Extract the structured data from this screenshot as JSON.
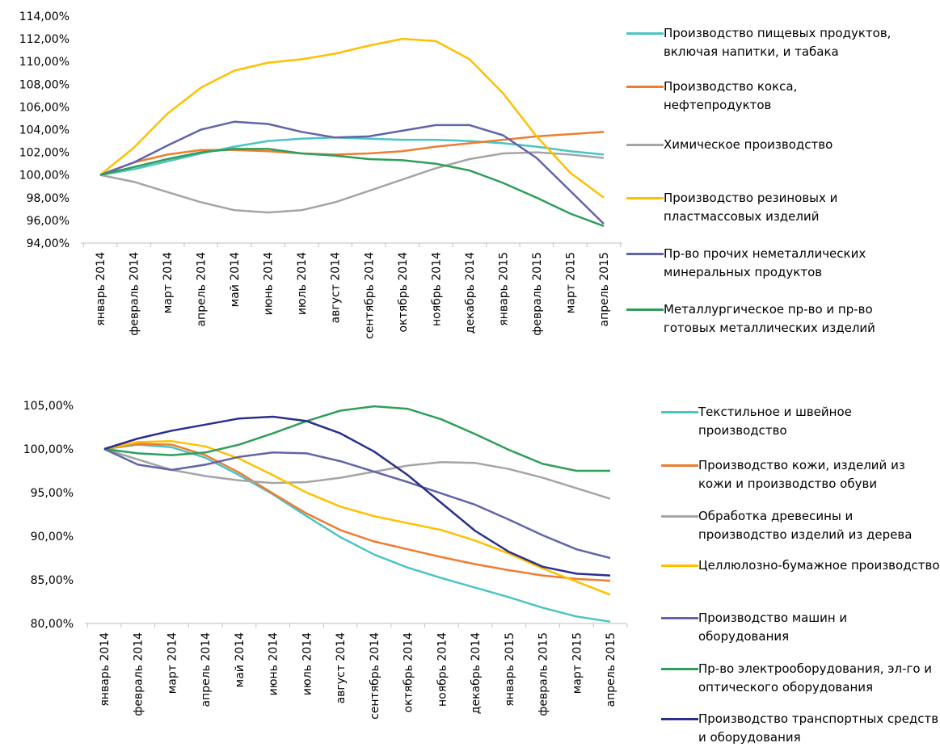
{
  "chart_data": [
    {
      "type": "line",
      "categories": [
        "январь 2014",
        "февраль 2014",
        "март 2014",
        "апрель 2014",
        "май 2014",
        "июнь 2014",
        "июль 2014",
        "август 2014",
        "сентябрь 2014",
        "октябрь 2014",
        "ноябрь 2014",
        "декабрь 2014",
        "январь 2015",
        "февраль 2015",
        "март 2015",
        "апрель 2015"
      ],
      "ylim": [
        94,
        114
      ],
      "yticks": [
        {
          "value": 94,
          "label": "94,00%"
        },
        {
          "value": 96,
          "label": "96,00%"
        },
        {
          "value": 98,
          "label": "98,00%"
        },
        {
          "value": 100,
          "label": "100,00%"
        },
        {
          "value": 102,
          "label": "102,00%"
        },
        {
          "value": 104,
          "label": "104,00%"
        },
        {
          "value": 106,
          "label": "106,00%"
        },
        {
          "value": 108,
          "label": "108,00%"
        },
        {
          "value": 110,
          "label": "110,00%"
        },
        {
          "value": 112,
          "label": "112,00%"
        },
        {
          "value": 114,
          "label": "114,00%"
        }
      ],
      "legend": "right",
      "series": [
        {
          "name": "Производство пищевых продуктов, включая напитки, и табака",
          "color": "#4bc4c4",
          "values": [
            100,
            100.5,
            101.2,
            101.9,
            102.5,
            103.0,
            103.2,
            103.3,
            103.2,
            103.1,
            103.1,
            103.0,
            102.8,
            102.5,
            102.1,
            101.8
          ]
        },
        {
          "name": "Производство кокса, нефтепродуктов",
          "color": "#ed7d31",
          "values": [
            100,
            101.1,
            101.8,
            102.2,
            102.2,
            102.1,
            101.9,
            101.8,
            101.9,
            102.1,
            102.5,
            102.8,
            103.1,
            103.4,
            103.6,
            103.8
          ]
        },
        {
          "name": "Химическое производство",
          "color": "#a5a5a5",
          "values": [
            100,
            99.4,
            98.5,
            97.6,
            96.9,
            96.7,
            96.9,
            97.6,
            98.6,
            99.6,
            100.6,
            101.4,
            101.9,
            102.0,
            101.8,
            101.5
          ]
        },
        {
          "name": "Производство резиновых и пластмассовых изделий",
          "color": "#ffc000",
          "values": [
            100,
            102.4,
            105.4,
            107.7,
            109.2,
            109.9,
            110.2,
            110.7,
            111.4,
            112.0,
            111.8,
            110.2,
            107.2,
            103.4,
            100.2,
            98.0
          ]
        },
        {
          "name": "Пр-во прочих неметаллических минеральных продуктов",
          "color": "#6264a7",
          "values": [
            100,
            101.1,
            102.6,
            104.0,
            104.7,
            104.5,
            103.8,
            103.3,
            103.4,
            103.9,
            104.4,
            104.4,
            103.5,
            101.5,
            98.6,
            95.7
          ]
        },
        {
          "name": "Металлургическое пр-во и пр-во готовых металлических изделий",
          "color": "#2e9e5b",
          "values": [
            100,
            100.7,
            101.4,
            102.0,
            102.3,
            102.3,
            101.9,
            101.7,
            101.4,
            101.3,
            101.0,
            100.4,
            99.3,
            98.0,
            96.6,
            95.5
          ]
        }
      ]
    },
    {
      "type": "line",
      "categories": [
        "январь 2014",
        "февраль 2014",
        "март 2014",
        "апрель 2014",
        "май 2014",
        "июнь 2014",
        "июль 2014",
        "август 2014",
        "сентябрь 2014",
        "октябрь 2014",
        "ноябрь 2014",
        "декабрь 2014",
        "январь 2015",
        "февраль 2015",
        "март 2015",
        "апрель 2015"
      ],
      "ylim": [
        80,
        105
      ],
      "yticks": [
        {
          "value": 80,
          "label": "80,00%"
        },
        {
          "value": 85,
          "label": "85,00%"
        },
        {
          "value": 90,
          "label": "90,00%"
        },
        {
          "value": 95,
          "label": "95,00%"
        },
        {
          "value": 100,
          "label": "100,00%"
        },
        {
          "value": 105,
          "label": "105,00%"
        }
      ],
      "legend": "right",
      "series": [
        {
          "name": "Текстильное и швейное производство",
          "color": "#4bc4c4",
          "values": [
            100,
            100.5,
            100.2,
            99.0,
            97.0,
            94.8,
            92.3,
            89.9,
            87.9,
            86.4,
            85.2,
            84.1,
            83.0,
            81.8,
            80.8,
            80.2
          ]
        },
        {
          "name": "Производство кожи, изделий из кожи и производство обуви",
          "color": "#ed7d31",
          "values": [
            100,
            100.6,
            100.5,
            99.3,
            97.3,
            94.9,
            92.6,
            90.7,
            89.4,
            88.5,
            87.6,
            86.8,
            86.1,
            85.5,
            85.1,
            84.9
          ]
        },
        {
          "name": "Обработка древесины и производство изделий из дерева",
          "color": "#a5a5a5",
          "values": [
            100,
            98.8,
            97.6,
            96.9,
            96.4,
            96.1,
            96.2,
            96.7,
            97.4,
            98.1,
            98.5,
            98.4,
            97.7,
            96.7,
            95.5,
            94.3
          ]
        },
        {
          "name": "Целлюлозно-бумажное производство",
          "color": "#ffc000",
          "values": [
            100,
            100.8,
            100.9,
            100.3,
            98.9,
            97.0,
            95.0,
            93.4,
            92.3,
            91.5,
            90.7,
            89.5,
            88.0,
            86.3,
            84.8,
            83.3
          ]
        },
        {
          "name": "Производство машин и оборудования",
          "color": "#6264a7",
          "values": [
            100,
            98.2,
            97.6,
            98.2,
            99.1,
            99.6,
            99.5,
            98.6,
            97.4,
            96.2,
            94.9,
            93.6,
            91.9,
            90.1,
            88.5,
            87.5
          ]
        },
        {
          "name": "Пр-во электрооборудования, эл-го и оптического оборудования",
          "color": "#2e9e5b",
          "values": [
            100,
            99.5,
            99.3,
            99.6,
            100.5,
            101.8,
            103.2,
            104.4,
            104.9,
            104.6,
            103.4,
            101.7,
            99.9,
            98.3,
            97.5,
            97.5
          ]
        },
        {
          "name": "Производство транспортных средств и оборудования",
          "color": "#2b2f8c",
          "values": [
            100,
            101.2,
            102.1,
            102.8,
            103.5,
            103.7,
            103.2,
            101.8,
            99.7,
            97.0,
            93.8,
            90.6,
            88.2,
            86.5,
            85.7,
            85.5
          ]
        }
      ]
    }
  ]
}
